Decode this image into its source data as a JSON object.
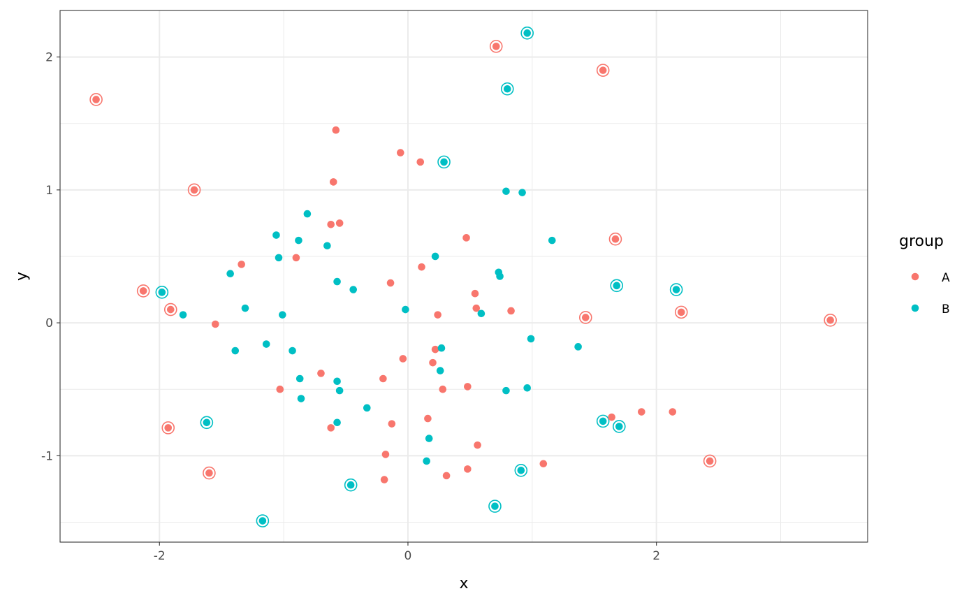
{
  "chart_data": {
    "type": "scatter",
    "title": "",
    "xlabel": "x",
    "ylabel": "y",
    "xlim": [
      -2.8,
      3.7
    ],
    "ylim": [
      -1.65,
      2.35
    ],
    "x_ticks": [
      {
        "value": -2,
        "label": "-2"
      },
      {
        "value": 0,
        "label": "0"
      },
      {
        "value": 2,
        "label": "2"
      }
    ],
    "y_ticks": [
      {
        "value": -1,
        "label": "-1"
      },
      {
        "value": 0,
        "label": "0"
      },
      {
        "value": 1,
        "label": "1"
      },
      {
        "value": 2,
        "label": "2"
      }
    ],
    "x_minor_gridlines": [
      -3,
      -1,
      1,
      3
    ],
    "y_minor_gridlines": [
      -1.5,
      -0.5,
      0.5,
      1.5
    ],
    "grid": true,
    "legend": {
      "title": "group",
      "position": "right"
    },
    "highlight_style": "ring around outlier points",
    "series": [
      {
        "name": "A",
        "color": "#F8766D",
        "points": [
          {
            "x": -2.51,
            "y": 1.68,
            "ring": true
          },
          {
            "x": -2.13,
            "y": 0.24,
            "ring": true
          },
          {
            "x": -1.91,
            "y": 0.1,
            "ring": true
          },
          {
            "x": -1.93,
            "y": -0.79,
            "ring": true
          },
          {
            "x": -1.72,
            "y": 1.0,
            "ring": true
          },
          {
            "x": -1.6,
            "y": -1.13,
            "ring": true
          },
          {
            "x": -1.55,
            "y": -0.01,
            "ring": false
          },
          {
            "x": -1.34,
            "y": 0.44,
            "ring": false
          },
          {
            "x": -1.03,
            "y": -0.5,
            "ring": false
          },
          {
            "x": -0.9,
            "y": 0.49,
            "ring": false
          },
          {
            "x": -0.7,
            "y": -0.38,
            "ring": false
          },
          {
            "x": -0.62,
            "y": 0.74,
            "ring": false
          },
          {
            "x": -0.6,
            "y": 1.06,
            "ring": false
          },
          {
            "x": -0.58,
            "y": 1.45,
            "ring": false
          },
          {
            "x": -0.62,
            "y": -0.79,
            "ring": false
          },
          {
            "x": -0.55,
            "y": 0.75,
            "ring": false
          },
          {
            "x": -0.2,
            "y": -0.42,
            "ring": false
          },
          {
            "x": -0.18,
            "y": -0.99,
            "ring": false
          },
          {
            "x": -0.19,
            "y": -1.18,
            "ring": false
          },
          {
            "x": -0.14,
            "y": 0.3,
            "ring": false
          },
          {
            "x": -0.13,
            "y": -0.76,
            "ring": false
          },
          {
            "x": -0.06,
            "y": 1.28,
            "ring": false
          },
          {
            "x": -0.04,
            "y": -0.27,
            "ring": false
          },
          {
            "x": 0.1,
            "y": 1.21,
            "ring": false
          },
          {
            "x": 0.11,
            "y": 0.42,
            "ring": false
          },
          {
            "x": 0.16,
            "y": -0.72,
            "ring": false
          },
          {
            "x": 0.2,
            "y": -0.3,
            "ring": false
          },
          {
            "x": 0.22,
            "y": -0.2,
            "ring": false
          },
          {
            "x": 0.24,
            "y": 0.06,
            "ring": false
          },
          {
            "x": 0.28,
            "y": -0.5,
            "ring": false
          },
          {
            "x": 0.31,
            "y": -1.15,
            "ring": false
          },
          {
            "x": 0.47,
            "y": 0.64,
            "ring": false
          },
          {
            "x": 0.48,
            "y": -0.48,
            "ring": false
          },
          {
            "x": 0.48,
            "y": -1.1,
            "ring": false
          },
          {
            "x": 0.54,
            "y": 0.22,
            "ring": false
          },
          {
            "x": 0.55,
            "y": 0.11,
            "ring": false
          },
          {
            "x": 0.56,
            "y": -0.92,
            "ring": false
          },
          {
            "x": 0.71,
            "y": 2.08,
            "ring": true
          },
          {
            "x": 0.83,
            "y": 0.09,
            "ring": false
          },
          {
            "x": 1.09,
            "y": -1.06,
            "ring": false
          },
          {
            "x": 1.43,
            "y": 0.04,
            "ring": true
          },
          {
            "x": 1.57,
            "y": 1.9,
            "ring": true
          },
          {
            "x": 1.64,
            "y": -0.71,
            "ring": false
          },
          {
            "x": 1.67,
            "y": 0.63,
            "ring": true
          },
          {
            "x": 1.88,
            "y": -0.67,
            "ring": false
          },
          {
            "x": 2.13,
            "y": -0.67,
            "ring": false
          },
          {
            "x": 2.2,
            "y": 0.08,
            "ring": true
          },
          {
            "x": 2.43,
            "y": -1.04,
            "ring": true
          },
          {
            "x": 3.4,
            "y": 0.02,
            "ring": true
          }
        ]
      },
      {
        "name": "B",
        "color": "#00BFC4",
        "points": [
          {
            "x": -1.98,
            "y": 0.23,
            "ring": true
          },
          {
            "x": -1.81,
            "y": 0.06,
            "ring": false
          },
          {
            "x": -1.62,
            "y": -0.75,
            "ring": true
          },
          {
            "x": -1.43,
            "y": 0.37,
            "ring": false
          },
          {
            "x": -1.39,
            "y": -0.21,
            "ring": false
          },
          {
            "x": -1.31,
            "y": 0.11,
            "ring": false
          },
          {
            "x": -1.17,
            "y": -1.49,
            "ring": true
          },
          {
            "x": -1.14,
            "y": -0.16,
            "ring": false
          },
          {
            "x": -1.06,
            "y": 0.66,
            "ring": false
          },
          {
            "x": -1.04,
            "y": 0.49,
            "ring": false
          },
          {
            "x": -1.01,
            "y": 0.06,
            "ring": false
          },
          {
            "x": -0.93,
            "y": -0.21,
            "ring": false
          },
          {
            "x": -0.88,
            "y": 0.62,
            "ring": false
          },
          {
            "x": -0.87,
            "y": -0.42,
            "ring": false
          },
          {
            "x": -0.86,
            "y": -0.57,
            "ring": false
          },
          {
            "x": -0.81,
            "y": 0.82,
            "ring": false
          },
          {
            "x": -0.65,
            "y": 0.58,
            "ring": false
          },
          {
            "x": -0.57,
            "y": 0.31,
            "ring": false
          },
          {
            "x": -0.57,
            "y": -0.44,
            "ring": false
          },
          {
            "x": -0.55,
            "y": -0.51,
            "ring": false
          },
          {
            "x": -0.57,
            "y": -0.75,
            "ring": false
          },
          {
            "x": -0.46,
            "y": -1.22,
            "ring": true
          },
          {
            "x": -0.44,
            "y": 0.25,
            "ring": false
          },
          {
            "x": -0.33,
            "y": -0.64,
            "ring": false
          },
          {
            "x": -0.02,
            "y": 0.1,
            "ring": false
          },
          {
            "x": 0.15,
            "y": -1.04,
            "ring": false
          },
          {
            "x": 0.17,
            "y": -0.87,
            "ring": false
          },
          {
            "x": 0.22,
            "y": 0.5,
            "ring": false
          },
          {
            "x": 0.26,
            "y": -0.36,
            "ring": false
          },
          {
            "x": 0.27,
            "y": -0.19,
            "ring": false
          },
          {
            "x": 0.29,
            "y": 1.21,
            "ring": true
          },
          {
            "x": 0.59,
            "y": 0.07,
            "ring": false
          },
          {
            "x": 0.7,
            "y": -1.38,
            "ring": true
          },
          {
            "x": 0.73,
            "y": 0.38,
            "ring": false
          },
          {
            "x": 0.74,
            "y": 0.35,
            "ring": false
          },
          {
            "x": 0.79,
            "y": 0.99,
            "ring": false
          },
          {
            "x": 0.79,
            "y": -0.51,
            "ring": false
          },
          {
            "x": 0.8,
            "y": 1.76,
            "ring": true
          },
          {
            "x": 0.91,
            "y": -1.11,
            "ring": true
          },
          {
            "x": 0.92,
            "y": 0.98,
            "ring": false
          },
          {
            "x": 0.96,
            "y": 2.18,
            "ring": true
          },
          {
            "x": 0.96,
            "y": -0.49,
            "ring": false
          },
          {
            "x": 0.99,
            "y": -0.12,
            "ring": false
          },
          {
            "x": 1.16,
            "y": 0.62,
            "ring": false
          },
          {
            "x": 1.37,
            "y": -0.18,
            "ring": false
          },
          {
            "x": 1.57,
            "y": -0.74,
            "ring": true
          },
          {
            "x": 1.68,
            "y": 0.28,
            "ring": true
          },
          {
            "x": 1.7,
            "y": -0.78,
            "ring": true
          },
          {
            "x": 2.16,
            "y": 0.25,
            "ring": true
          }
        ]
      }
    ]
  }
}
